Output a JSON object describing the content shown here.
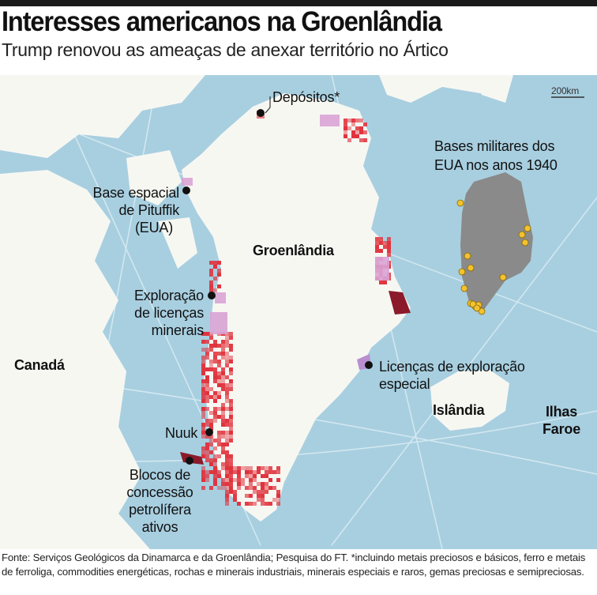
{
  "header": {
    "title": "Interesses americanos na Groenlândia",
    "subtitle": "Trump renovou as ameaças de anexar território no Ártico"
  },
  "map": {
    "scale_label": "200km",
    "labels": {
      "depositos": "Depósitos*",
      "pituffik": [
        "Base espacial",
        "de Pituffik",
        "(EUA)"
      ],
      "groenlandia": "Groenlândia",
      "exploracao": [
        "Exploração",
        "de licenças",
        "minerais"
      ],
      "canada": "Canadá",
      "licencas_especial": [
        "Licenças de exploração",
        "especial"
      ],
      "islandia": "Islândia",
      "faroe": [
        "Ilhas",
        "Faroe"
      ],
      "nuuk": "Nuuk",
      "blocos": [
        "Blocos de",
        "concessão",
        "petrolífera",
        "ativos"
      ],
      "bases": [
        "Bases militares dos",
        "EUA nos anos 1940"
      ]
    },
    "colors": {
      "ocean": "#a8cfe0",
      "land": "#f7f7f2",
      "deposits": "#e0323c",
      "mineral_licenses": "#d9a3d6",
      "oil_blocks": "#8b1a2a",
      "special_license": "#b98fd0",
      "inset_land": "#8a8a8a",
      "bases": "#f2c230"
    },
    "inset_bases_count": 15
  },
  "footer": {
    "source": "Fonte: Serviços Geológicos da Dinamarca e da Groenlândia; Pesquisa do FT. *incluindo metais preciosos e básicos, ferro e metais de ferroliga, commodities energéticas, rochas e minerais industriais, minerais especiais e raros, gemas preciosas e semipreciosas."
  }
}
